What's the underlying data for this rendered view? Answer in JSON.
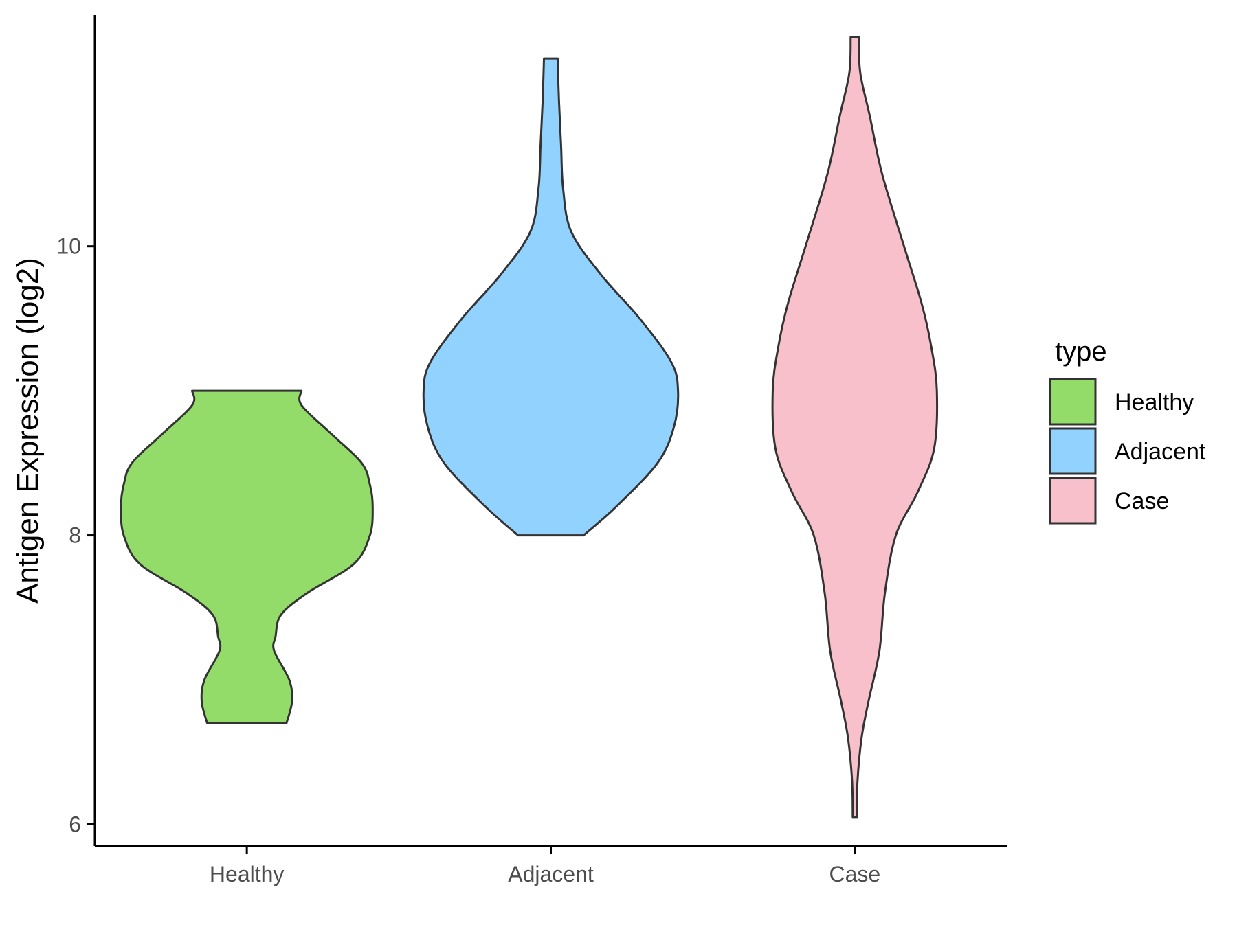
{
  "chart_data": {
    "type": "violin",
    "ylabel": "Antigen Expression (log2)",
    "xlabel": "",
    "ylim": [
      5.85,
      11.6
    ],
    "yticks": [
      6,
      8,
      10
    ],
    "categories": [
      "Healthy",
      "Adjacent",
      "Case"
    ],
    "legend": {
      "title": "type",
      "position": "right",
      "entries": [
        "Healthy",
        "Adjacent",
        "Case"
      ]
    },
    "grid": false,
    "colors": {
      "Healthy": "#93dc6a",
      "Adjacent": "#92d2ff",
      "Case": "#f7c0cb",
      "outline": "#333333",
      "axis": "#000000"
    },
    "series": [
      {
        "name": "Healthy",
        "min": 6.7,
        "max": 9.0,
        "profile": [
          [
            6.7,
            0.29
          ],
          [
            6.85,
            0.33
          ],
          [
            7.0,
            0.31
          ],
          [
            7.2,
            0.2
          ],
          [
            7.3,
            0.21
          ],
          [
            7.45,
            0.25
          ],
          [
            7.6,
            0.44
          ],
          [
            7.8,
            0.78
          ],
          [
            8.0,
            0.9
          ],
          [
            8.2,
            0.92
          ],
          [
            8.35,
            0.9
          ],
          [
            8.5,
            0.84
          ],
          [
            8.7,
            0.62
          ],
          [
            8.9,
            0.4
          ],
          [
            9.0,
            0.4
          ]
        ]
      },
      {
        "name": "Adjacent",
        "min": 8.0,
        "max": 11.3,
        "profile": [
          [
            8.0,
            0.24
          ],
          [
            8.2,
            0.48
          ],
          [
            8.5,
            0.78
          ],
          [
            8.75,
            0.9
          ],
          [
            9.0,
            0.93
          ],
          [
            9.2,
            0.88
          ],
          [
            9.5,
            0.65
          ],
          [
            9.8,
            0.37
          ],
          [
            10.1,
            0.15
          ],
          [
            10.4,
            0.09
          ],
          [
            10.7,
            0.075
          ],
          [
            11.0,
            0.06
          ],
          [
            11.3,
            0.05
          ]
        ]
      },
      {
        "name": "Case",
        "min": 6.05,
        "max": 11.45,
        "profile": [
          [
            6.05,
            0.015
          ],
          [
            6.3,
            0.02
          ],
          [
            6.6,
            0.05
          ],
          [
            6.85,
            0.1
          ],
          [
            7.2,
            0.18
          ],
          [
            7.6,
            0.22
          ],
          [
            8.0,
            0.3
          ],
          [
            8.3,
            0.46
          ],
          [
            8.6,
            0.58
          ],
          [
            9.0,
            0.6
          ],
          [
            9.3,
            0.56
          ],
          [
            9.6,
            0.49
          ],
          [
            10.0,
            0.36
          ],
          [
            10.5,
            0.2
          ],
          [
            10.9,
            0.11
          ],
          [
            11.2,
            0.04
          ],
          [
            11.45,
            0.03
          ]
        ]
      }
    ]
  }
}
